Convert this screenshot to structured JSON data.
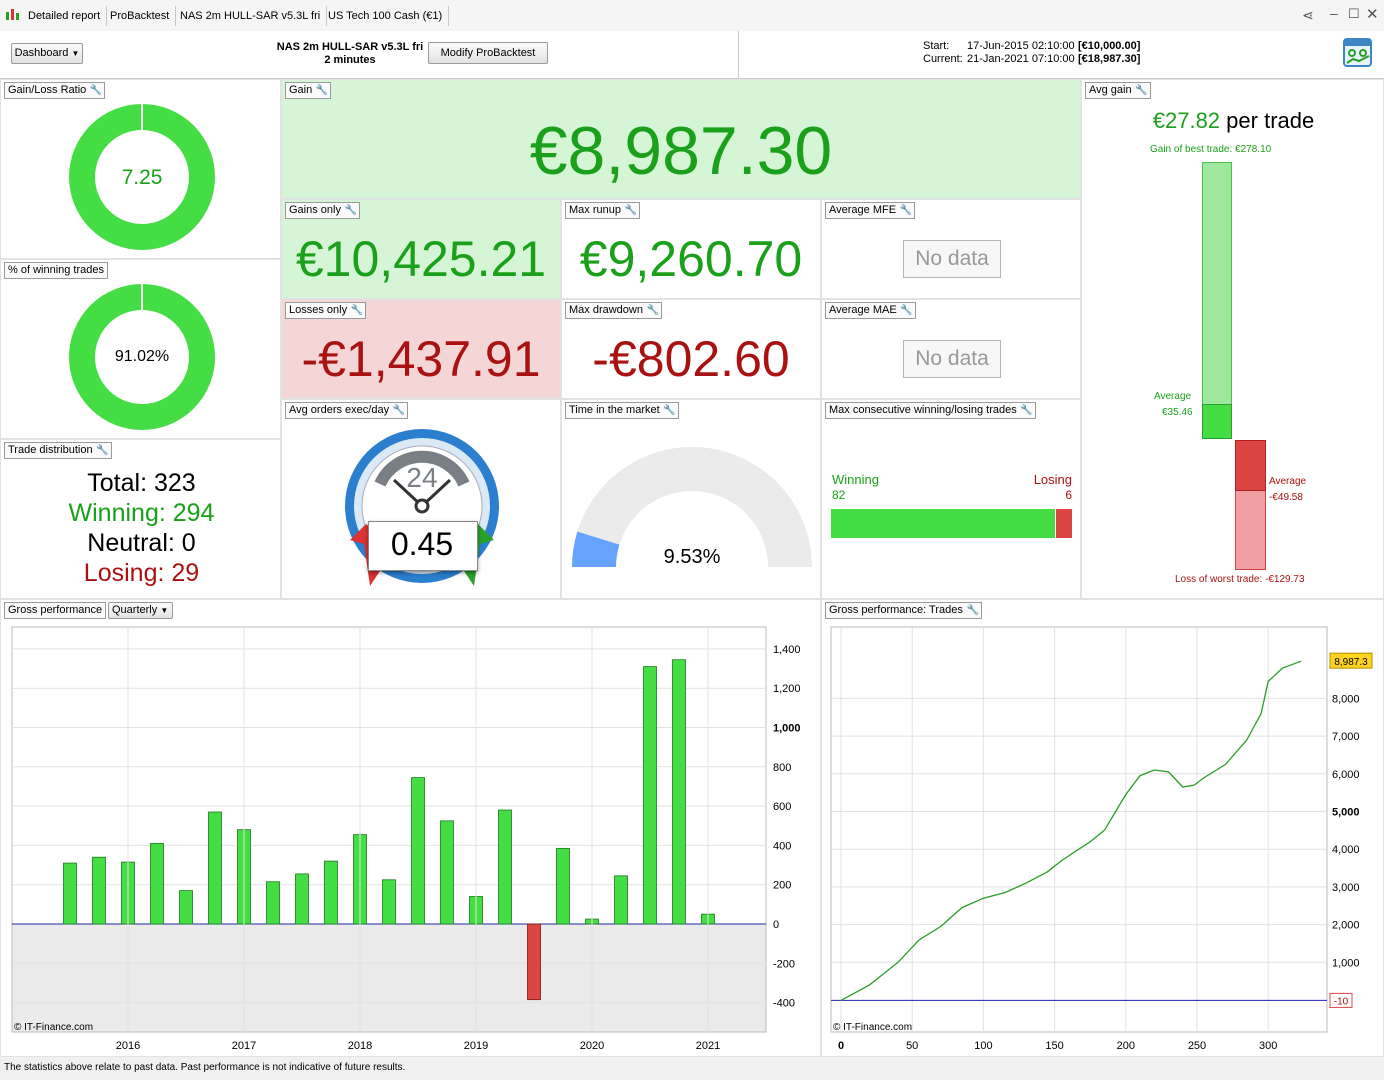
{
  "titlebar": {
    "tabs": [
      "Detailed report",
      "ProBacktest",
      "NAS 2m HULL-SAR v5.3L fri",
      "US Tech 100 Cash (€1)"
    ]
  },
  "header": {
    "dashboard_label": "Dashboard",
    "strategy_name": "NAS 2m HULL-SAR v5.3L fri",
    "timeframe": "2 minutes",
    "modify_label": "Modify ProBacktest",
    "start_label": "Start:",
    "start_value": "17-Jun-2015 02:10:00",
    "start_capital": "[€10,000.00]",
    "current_label": "Current:",
    "current_value": "21-Jan-2021 07:10:00",
    "current_capital": "[€18,987.30]"
  },
  "gain_loss_ratio": {
    "title": "Gain/Loss Ratio",
    "value": "7.25",
    "fraction": 0.879
  },
  "winning_pct": {
    "title": "% of winning trades",
    "value": "91.02%",
    "fraction": 0.9102
  },
  "trade_distribution": {
    "title": "Trade distribution",
    "total_label": "Total:",
    "total": "323",
    "winning_label": "Winning:",
    "winning": "294",
    "neutral_label": "Neutral:",
    "neutral": "0",
    "losing_label": "Losing:",
    "losing": "29"
  },
  "gain": {
    "title": "Gain",
    "value": "€8,987.30"
  },
  "gains_only": {
    "title": "Gains only",
    "value": "€10,425.21"
  },
  "max_runup": {
    "title": "Max runup",
    "value": "€9,260.70"
  },
  "average_mfe": {
    "title": "Average MFE",
    "value": "No data"
  },
  "losses_only": {
    "title": "Losses only",
    "value": "-€1,437.91"
  },
  "max_drawdown": {
    "title": "Max drawdown",
    "value": "-€802.60"
  },
  "average_mae": {
    "title": "Average MAE",
    "value": "No data"
  },
  "avg_orders": {
    "title": "Avg orders exec/day",
    "value": "0.45",
    "dial_label": "24"
  },
  "time_in_market": {
    "title": "Time in the market",
    "value": "9.53%",
    "fraction": 0.0953
  },
  "max_consecutive": {
    "title": "Max consecutive winning/losing trades",
    "winning_label": "Winning",
    "winning": "82",
    "losing_label": "Losing",
    "losing": "6"
  },
  "avg_gain": {
    "title": "Avg gain",
    "value": "€27.82",
    "unit": "per trade",
    "best_trade_label": "Gain of best trade: €278.10",
    "avg_win_label": "Average",
    "avg_win_value": "€35.46",
    "avg_loss_label": "Average",
    "avg_loss_value": "-€49.58",
    "worst_trade_label": "Loss of worst trade: -€129.73"
  },
  "gross_performance": {
    "title": "Gross performance",
    "period": "Quarterly",
    "watermark": "© IT-Finance.com"
  },
  "gross_trades": {
    "title": "Gross performance: Trades",
    "watermark": "© IT-Finance.com"
  },
  "footer": {
    "disclaimer": "The statistics above relate to past data. Past performance is not indicative of future results."
  },
  "colors": {
    "green": "#44dd44",
    "dark_green": "#1aa01a",
    "red": "#dd4444",
    "dark_red": "#aa1111",
    "gain_bg": "#d6f5d6",
    "loss_bg": "#f5d6d6"
  },
  "chart_data": [
    {
      "type": "bar",
      "title": "Gross performance",
      "x_tick_labels": [
        "2016",
        "2017",
        "2018",
        "2019",
        "2020",
        "2021"
      ],
      "y_tick_labels": [
        "1,400",
        "1,200",
        "1,000",
        "800",
        "600",
        "400",
        "200",
        "0",
        "-200",
        "-400"
      ],
      "ylim": [
        -560,
        1400
      ],
      "categories": [
        "2015Q3",
        "2015Q4",
        "2016Q1",
        "2016Q2",
        "2016Q3",
        "2016Q4",
        "2017Q1",
        "2017Q2",
        "2017Q3",
        "2017Q4",
        "2018Q1",
        "2018Q2",
        "2018Q3",
        "2018Q4",
        "2019Q1",
        "2019Q2",
        "2019Q3",
        "2019Q4",
        "2020Q1",
        "2020Q2",
        "2020Q3",
        "2020Q4",
        "2021Q1"
      ],
      "values": [
        310,
        340,
        315,
        410,
        170,
        570,
        480,
        215,
        255,
        320,
        455,
        225,
        745,
        525,
        140,
        580,
        -385,
        385,
        25,
        245,
        1310,
        1345,
        50
      ],
      "grid": true
    },
    {
      "type": "line",
      "title": "Gross performance: Trades",
      "x_tick_labels": [
        "0",
        "50",
        "100",
        "150",
        "200",
        "250",
        "300"
      ],
      "y_tick_labels": [
        "8,000",
        "7,000",
        "6,000",
        "5,000",
        "4,000",
        "3,000",
        "2,000",
        "1,000"
      ],
      "last_value_label": "8,987.3",
      "baseline_label": "-10",
      "xlim": [
        0,
        340
      ],
      "ylim": [
        -600,
        9800
      ],
      "x": [
        0,
        20,
        40,
        55,
        70,
        85,
        100,
        115,
        130,
        145,
        155,
        165,
        175,
        185,
        200,
        210,
        220,
        230,
        240,
        248,
        255,
        270,
        285,
        295,
        300,
        310,
        323
      ],
      "y": [
        -10,
        400,
        1000,
        1600,
        1950,
        2450,
        2700,
        2850,
        3100,
        3400,
        3700,
        3950,
        4200,
        4500,
        5450,
        5950,
        6100,
        6050,
        5650,
        5700,
        5900,
        6250,
        6900,
        7600,
        8450,
        8800,
        8987.3
      ],
      "grid": true
    }
  ]
}
